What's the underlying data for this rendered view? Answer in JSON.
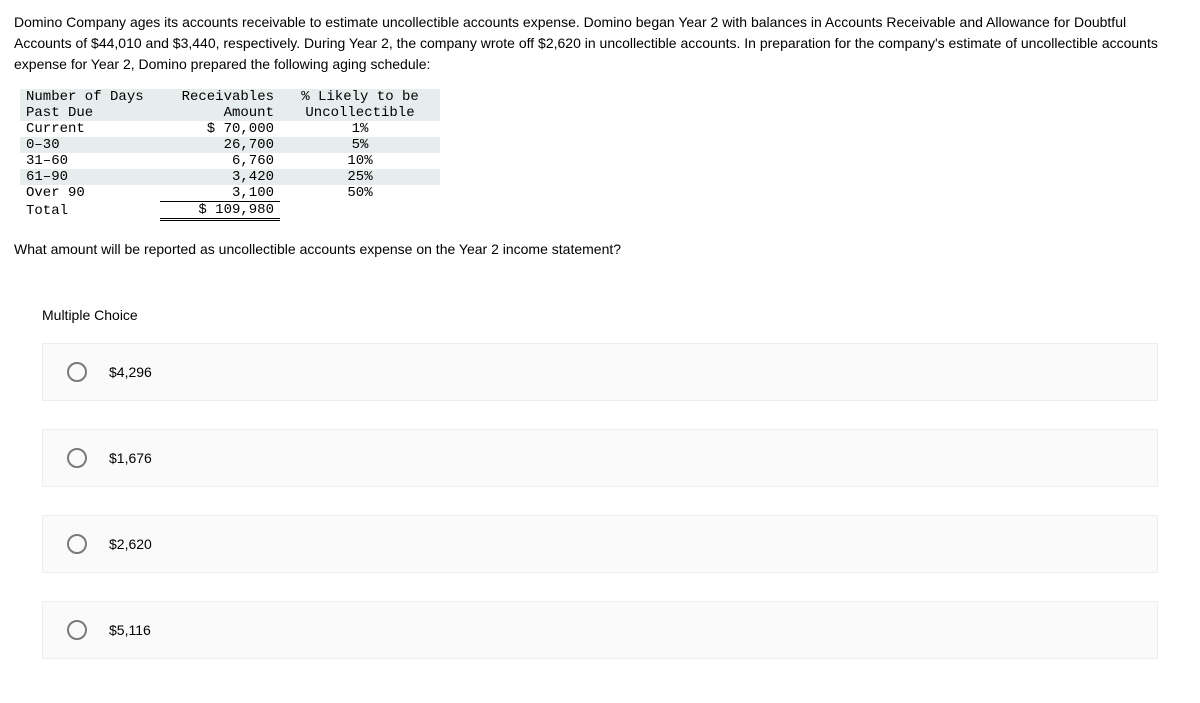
{
  "problem": {
    "intro": "Domino Company ages its accounts receivable to estimate uncollectible accounts expense. Domino began Year 2 with balances in Accounts Receivable and Allowance for Doubtful Accounts of $44,010 and $3,440, respectively. During Year 2, the company wrote off $2,620 in uncollectible accounts. In preparation for the company's estimate of uncollectible accounts expense for Year 2, Domino prepared the following aging schedule:"
  },
  "table": {
    "header": {
      "col1_line1": "Number of Days",
      "col1_line2": "Past Due",
      "col2_line1": "Receivables",
      "col2_line2": "Amount",
      "col3_line1": "% Likely to be",
      "col3_line2": "Uncollectible"
    },
    "rows": [
      {
        "days": "Current",
        "amount": "$ 70,000",
        "pct": "1%"
      },
      {
        "days": "0–30",
        "amount": "26,700",
        "pct": "5%"
      },
      {
        "days": "31–60",
        "amount": "6,760",
        "pct": "10%"
      },
      {
        "days": "61–90",
        "amount": "3,420",
        "pct": "25%"
      },
      {
        "days": "Over 90",
        "amount": "3,100",
        "pct": "50%"
      }
    ],
    "total": {
      "label": "Total",
      "amount": "$ 109,980"
    }
  },
  "question": "What amount will be reported as uncollectible accounts expense on the Year 2 income statement?",
  "mc_label": "Multiple Choice",
  "choices": [
    "$4,296",
    "$1,676",
    "$2,620",
    "$5,116"
  ]
}
